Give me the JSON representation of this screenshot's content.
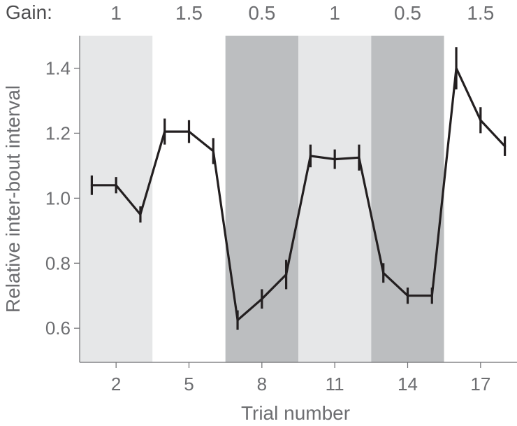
{
  "chart_data": {
    "type": "line",
    "gain_title": "Gain:",
    "xlabel": "Trial number",
    "ylabel": "Relative inter-bout interval",
    "xlim": [
      0.5,
      18.5
    ],
    "ylim": [
      0.495,
      1.5
    ],
    "x_ticks": [
      2,
      5,
      8,
      11,
      14,
      17
    ],
    "x_tick_labels": [
      "2",
      "5",
      "8",
      "11",
      "14",
      "17"
    ],
    "y_ticks": [
      0.6,
      0.8,
      1.0,
      1.2,
      1.4
    ],
    "y_tick_labels": [
      "0.6",
      "0.8",
      "1.0",
      "1.2",
      "1.4"
    ],
    "gain_blocks": [
      {
        "label": "1",
        "x_range": [
          0.5,
          3.5
        ],
        "color": "#e6e7e8"
      },
      {
        "label": "1.5",
        "x_range": [
          3.5,
          6.5
        ],
        "color": "#ffffff"
      },
      {
        "label": "0.5",
        "x_range": [
          6.5,
          9.5
        ],
        "color": "#bcbec0"
      },
      {
        "label": "1",
        "x_range": [
          9.5,
          12.5
        ],
        "color": "#e6e7e8"
      },
      {
        "label": "0.5",
        "x_range": [
          12.5,
          15.5
        ],
        "color": "#bcbec0"
      },
      {
        "label": "1.5",
        "x_range": [
          15.5,
          18.5
        ],
        "color": "#ffffff"
      }
    ],
    "series": [
      {
        "x": [
          1,
          2,
          3,
          4,
          5,
          6,
          7,
          8,
          9,
          10,
          11,
          12,
          13,
          14,
          15,
          16,
          17,
          18
        ],
        "y": [
          1.04,
          1.04,
          0.95,
          1.205,
          1.205,
          1.145,
          0.625,
          0.69,
          0.765,
          1.13,
          1.12,
          1.125,
          0.77,
          0.7,
          0.7,
          1.4,
          1.24,
          1.16
        ],
        "err": [
          0.03,
          0.025,
          0.025,
          0.04,
          0.035,
          0.04,
          0.03,
          0.03,
          0.045,
          0.035,
          0.03,
          0.04,
          0.03,
          0.025,
          0.025,
          0.065,
          0.04,
          0.03
        ]
      }
    ],
    "line_color": "#231f20",
    "axis_color": "#6d6e71"
  }
}
